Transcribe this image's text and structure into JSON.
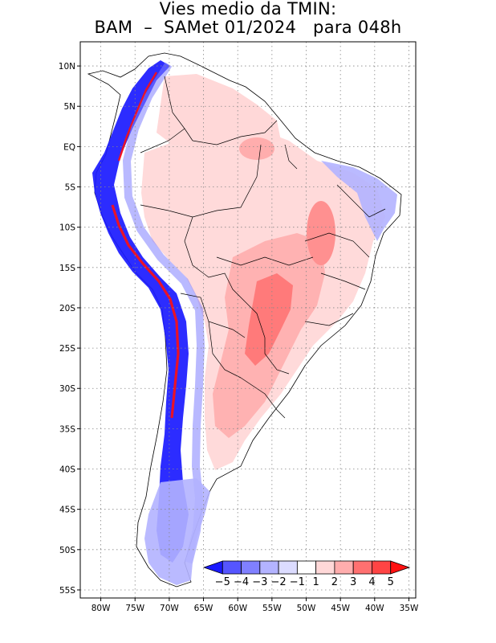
{
  "title": {
    "line1": "Vies medio da TMIN:",
    "line2": "BAM  –  SAMet 01/2024   para 048h"
  },
  "map": {
    "lon_range": [
      -83,
      -34
    ],
    "lat_range": [
      -56,
      13
    ],
    "grid": "dotted",
    "lon_ticks": [
      {
        "value": -80,
        "label": "80W"
      },
      {
        "value": -75,
        "label": "75W"
      },
      {
        "value": -70,
        "label": "70W"
      },
      {
        "value": -65,
        "label": "65W"
      },
      {
        "value": -60,
        "label": "60W"
      },
      {
        "value": -55,
        "label": "55W"
      },
      {
        "value": -50,
        "label": "50W"
      },
      {
        "value": -45,
        "label": "45W"
      },
      {
        "value": -40,
        "label": "40W"
      },
      {
        "value": -35,
        "label": "35W"
      }
    ],
    "lat_ticks": [
      {
        "value": 10,
        "label": "10N"
      },
      {
        "value": 5,
        "label": "5N"
      },
      {
        "value": 0,
        "label": "EQ"
      },
      {
        "value": -5,
        "label": "5S"
      },
      {
        "value": -10,
        "label": "10S"
      },
      {
        "value": -15,
        "label": "15S"
      },
      {
        "value": -20,
        "label": "20S"
      },
      {
        "value": -25,
        "label": "25S"
      },
      {
        "value": -30,
        "label": "30S"
      },
      {
        "value": -35,
        "label": "35S"
      },
      {
        "value": -40,
        "label": "40S"
      },
      {
        "value": -45,
        "label": "45S"
      },
      {
        "value": -50,
        "label": "50S"
      },
      {
        "value": -55,
        "label": "55S"
      }
    ]
  },
  "colorbar": {
    "labels": [
      "−5",
      "−4",
      "−3",
      "−2",
      "−1",
      "1",
      "2",
      "3",
      "4",
      "5"
    ],
    "colors": [
      "#1a1aff",
      "#5555ff",
      "#8080ff",
      "#b3b3ff",
      "#dcdcff",
      "#ffffff",
      "#ffd8d8",
      "#ffadad",
      "#ff7070",
      "#ff4444",
      "#ff1010"
    ]
  }
}
